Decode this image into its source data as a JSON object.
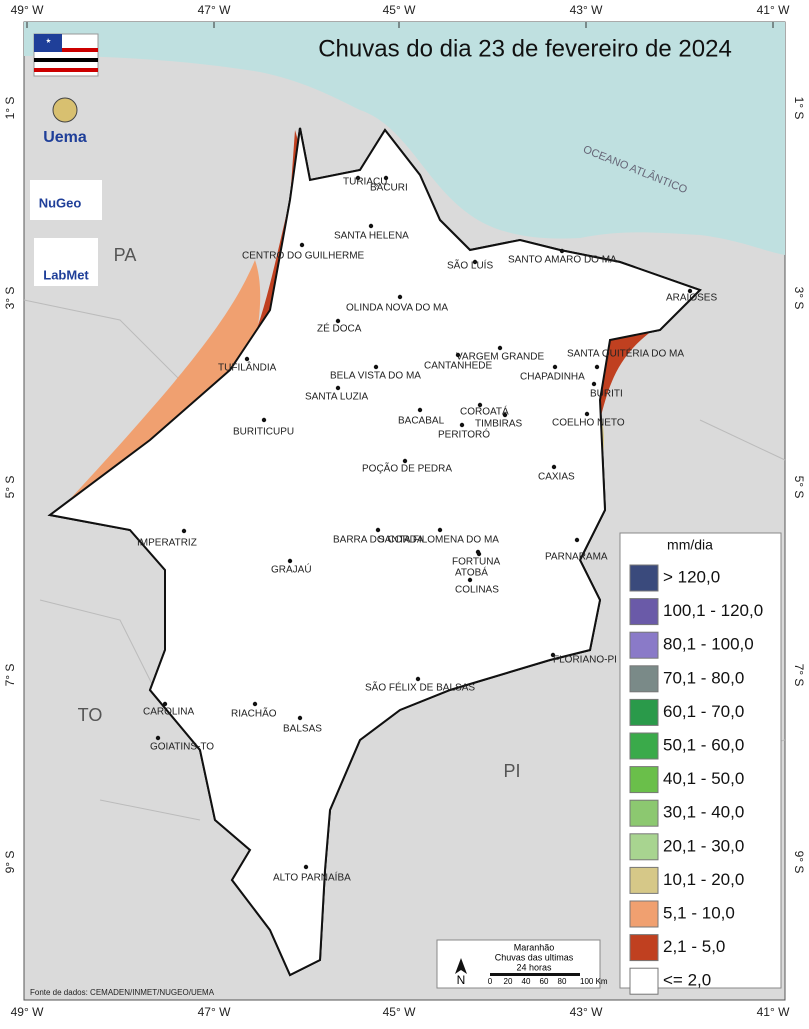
{
  "title": "Chuvas do dia 23 de fevereiro de 2024",
  "lon_labels": [
    "49° W",
    "47° W",
    "45° W",
    "43° W",
    "41° W"
  ],
  "lat_labels": [
    "1° S",
    "3° S",
    "5° S",
    "7° S",
    "9° S"
  ],
  "ocean_label": "OCEANO ATLÂNTICO",
  "states": [
    "PA",
    "TO",
    "PI"
  ],
  "logos": [
    "Uema",
    "NuGeo",
    "LabMet"
  ],
  "cities": [
    "TURIAÇU",
    "BACURI",
    "SANTA HELENA",
    "CENTRO DO GUILHERME",
    "SÃO LUÍS",
    "SANTO AMARO DO MA",
    "ARAIOSES",
    "OLINDA NOVA DO MA",
    "ZÉ DOCA",
    "VARGEM GRANDE",
    "SANTA QUITÉRIA DO MA",
    "TUFILÂNDIA",
    "CANTANHEDE",
    "BELA VISTA DO MA",
    "CHAPADINHA",
    "SANTA LUZIA",
    "BURITI",
    "COROATÁ",
    "BACABAL",
    "TIMBIRAS",
    "COELHO NETO",
    "BURITICUPU",
    "PERITORÓ",
    "POÇÃO DE PEDRA",
    "CAXIAS",
    "BARRA DO CORDA",
    "SANTA FILOMENA DO MA",
    "IMPERATRIZ",
    "PARNARAMA",
    "FORTUNA",
    "GRAJAÚ",
    "ATOBÁ",
    "COLINAS",
    "FLORIANO-PI",
    "SÃO FÉLIX DE BALSAS",
    "CAROLINA",
    "RIACHÃO",
    "BALSAS",
    "GOIATINS-TO",
    "ALTO PARNAÍBA"
  ],
  "legend": {
    "title": "mm/dia",
    "items": [
      {
        "label": "> 120,0",
        "color": "#3a4a7c"
      },
      {
        "label": "100,1 - 120,0",
        "color": "#6a5aa8"
      },
      {
        "label": "80,1 - 100,0",
        "color": "#8a7ac8"
      },
      {
        "label": "70,1 - 80,0",
        "color": "#7a8a88"
      },
      {
        "label": "60,1 - 70,0",
        "color": "#2a9a4a"
      },
      {
        "label": "50,1 - 60,0",
        "color": "#3aaa4a"
      },
      {
        "label": "40,1 - 50,0",
        "color": "#6abf4a"
      },
      {
        "label": "30,1 - 40,0",
        "color": "#8cc870"
      },
      {
        "label": "20,1 - 30,0",
        "color": "#a8d490"
      },
      {
        "label": "10,1 - 20,0",
        "color": "#d6c888"
      },
      {
        "label": "5,1 - 10,0",
        "color": "#f0a070"
      },
      {
        "label": "2,1 - 5,0",
        "color": "#c04020"
      },
      {
        "label": "<= 2,0",
        "color": "#ffffff"
      }
    ]
  },
  "scale_box": {
    "lines": [
      "Maranhão",
      "Chuvas das ultimas",
      "24 horas"
    ],
    "north": "N",
    "ticks": [
      "0",
      "20",
      "40",
      "60",
      "80",
      "100 Km"
    ]
  },
  "source": "Fonte de dados: CEMADEN/INMET/NUGEO/UEMA"
}
